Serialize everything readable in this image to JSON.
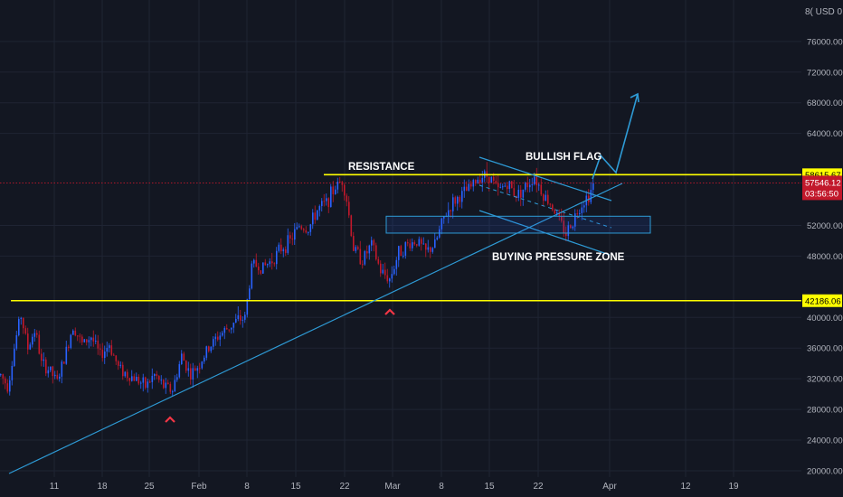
{
  "currency_label": "8( USD 0",
  "colors": {
    "background": "#131722",
    "up": "#2962ff",
    "down": "#c2182b",
    "trendline": "#2e9bd6",
    "level": "#ffff00",
    "arrow_marker": "#f23645",
    "grid": "#1f2433"
  },
  "chart_data": {
    "type": "candlestick",
    "price_range": [
      20000,
      80000
    ],
    "date_ticks": [
      "11",
      "18",
      "25",
      "Feb",
      "8",
      "15",
      "22",
      "Mar",
      "8",
      "15",
      "22",
      "Apr",
      "12",
      "19"
    ],
    "price_ticks": [
      {
        "value": 76000,
        "label": "76000.00"
      },
      {
        "value": 72000,
        "label": "72000.00"
      },
      {
        "value": 68000,
        "label": "68000.00"
      },
      {
        "value": 64000,
        "label": "64000.00"
      },
      {
        "value": 52000,
        "label": "52000.00"
      },
      {
        "value": 48000,
        "label": "48000.00"
      },
      {
        "value": 40000,
        "label": "40000.00"
      },
      {
        "value": 36000,
        "label": "36000.00"
      },
      {
        "value": 32000,
        "label": "32000.00"
      },
      {
        "value": 28000,
        "label": "28000.00"
      },
      {
        "value": 24000,
        "label": "24000.00"
      },
      {
        "value": 20000,
        "label": "20000.00"
      }
    ],
    "series_control_points": [
      [
        0,
        32500
      ],
      [
        8,
        31000
      ],
      [
        15,
        36000
      ],
      [
        22,
        40500
      ],
      [
        30,
        36000
      ],
      [
        38,
        38500
      ],
      [
        45,
        34000
      ],
      [
        55,
        33000
      ],
      [
        62,
        31500
      ],
      [
        70,
        34500
      ],
      [
        80,
        39000
      ],
      [
        90,
        36500
      ],
      [
        100,
        37500
      ],
      [
        110,
        35000
      ],
      [
        120,
        36500
      ],
      [
        130,
        33500
      ],
      [
        140,
        32500
      ],
      [
        150,
        32000
      ],
      [
        160,
        31000
      ],
      [
        170,
        32500
      ],
      [
        180,
        31000
      ],
      [
        190,
        30500
      ],
      [
        200,
        35000
      ],
      [
        210,
        32500
      ],
      [
        220,
        34000
      ],
      [
        230,
        36000
      ],
      [
        240,
        37500
      ],
      [
        250,
        38500
      ],
      [
        260,
        39500
      ],
      [
        270,
        40000
      ],
      [
        278,
        47000
      ],
      [
        290,
        46500
      ],
      [
        300,
        47500
      ],
      [
        310,
        49000
      ],
      [
        320,
        50000
      ],
      [
        330,
        52000
      ],
      [
        340,
        51500
      ],
      [
        350,
        54000
      ],
      [
        360,
        55000
      ],
      [
        370,
        57000
      ],
      [
        378,
        58000
      ],
      [
        383,
        55000
      ],
      [
        390,
        49000
      ],
      [
        400,
        47500
      ],
      [
        410,
        49500
      ],
      [
        420,
        46000
      ],
      [
        430,
        45000
      ],
      [
        440,
        48500
      ],
      [
        450,
        49500
      ],
      [
        460,
        50000
      ],
      [
        470,
        48500
      ],
      [
        480,
        49500
      ],
      [
        490,
        53000
      ],
      [
        500,
        55000
      ],
      [
        510,
        56000
      ],
      [
        520,
        57000
      ],
      [
        530,
        58500
      ],
      [
        540,
        58500
      ],
      [
        550,
        56500
      ],
      [
        560,
        57500
      ],
      [
        570,
        56000
      ],
      [
        580,
        57000
      ],
      [
        590,
        58500
      ],
      [
        600,
        56000
      ],
      [
        610,
        54500
      ],
      [
        620,
        52000
      ],
      [
        625,
        51000
      ],
      [
        632,
        52500
      ],
      [
        640,
        54500
      ],
      [
        650,
        56000
      ],
      [
        657,
        57546
      ]
    ],
    "current_price": {
      "value": 57546.12,
      "label": "57546.12",
      "countdown": "03:56:50"
    },
    "levels": [
      {
        "value": 58615.67,
        "label": "58615.67",
        "text": "RESISTANCE"
      },
      {
        "value": 42186.06,
        "label": "42186.06"
      }
    ],
    "annotations": {
      "resistance": "RESISTANCE",
      "flag": "BULLISH FLAG",
      "zone": "BUYING PRESSURE ZONE"
    },
    "zone_range": [
      51000,
      53200
    ]
  }
}
